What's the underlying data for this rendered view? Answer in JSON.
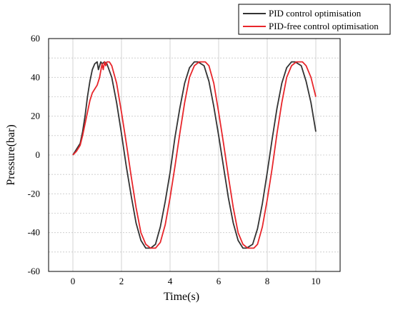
{
  "chart_data": {
    "type": "line",
    "title": "",
    "xlabel": "Time(s)",
    "ylabel": "Pressure(bar)",
    "xlim": [
      -1,
      11
    ],
    "ylim": [
      -60,
      60
    ],
    "xticks": [
      0,
      2,
      4,
      6,
      8,
      10
    ],
    "yticks": [
      -60,
      -40,
      -20,
      0,
      20,
      40,
      60
    ],
    "xtick_labels": [
      "0",
      "2",
      "4",
      "6",
      "8",
      "10"
    ],
    "ytick_labels": [
      "-60",
      "-40",
      "-20",
      "0",
      "20",
      "40",
      "60"
    ],
    "grid": true,
    "legend_position": "top-right",
    "series": [
      {
        "name": "PID control optimisation",
        "color": "#333333",
        "x": [
          0,
          0.15,
          0.3,
          0.4,
          0.5,
          0.6,
          0.7,
          0.8,
          0.9,
          1.0,
          1.05,
          1.1,
          1.15,
          1.2,
          1.3,
          1.4,
          1.6,
          1.8,
          2.0,
          2.2,
          2.4,
          2.6,
          2.8,
          3.0,
          3.2,
          3.4,
          3.6,
          3.8,
          4.0,
          4.2,
          4.4,
          4.6,
          4.8,
          5.0,
          5.15,
          5.4,
          5.6,
          5.8,
          6.0,
          6.2,
          6.4,
          6.6,
          6.8,
          7.0,
          7.15,
          7.4,
          7.6,
          7.8,
          8.0,
          8.2,
          8.4,
          8.6,
          8.8,
          9.0,
          9.15,
          9.4,
          9.6,
          9.8,
          10.0
        ],
        "y": [
          0,
          3,
          6,
          12,
          20,
          30,
          38,
          44,
          47,
          48,
          44,
          46,
          48,
          47,
          48,
          47,
          40,
          27,
          11,
          -6,
          -21,
          -35,
          -44,
          -48,
          -48,
          -46,
          -37,
          -24,
          -9,
          9,
          24,
          37,
          45,
          48,
          48,
          46,
          38,
          25,
          10,
          -6,
          -22,
          -35,
          -44,
          -48,
          -48,
          -46,
          -38,
          -25,
          -9,
          8,
          24,
          37,
          45,
          48,
          48,
          46,
          38,
          27,
          12
        ]
      },
      {
        "name": "PID-free control optimisation",
        "color": "#e8262b",
        "x": [
          0,
          0.15,
          0.3,
          0.4,
          0.5,
          0.6,
          0.7,
          0.8,
          0.9,
          1.0,
          1.1,
          1.2,
          1.25,
          1.3,
          1.35,
          1.4,
          1.5,
          1.6,
          1.8,
          2.0,
          2.2,
          2.4,
          2.6,
          2.8,
          3.0,
          3.2,
          3.4,
          3.6,
          3.8,
          4.0,
          4.2,
          4.4,
          4.6,
          4.8,
          5.0,
          5.2,
          5.45,
          5.6,
          5.8,
          6.0,
          6.2,
          6.4,
          6.6,
          6.8,
          7.0,
          7.2,
          7.45,
          7.6,
          7.8,
          8.0,
          8.2,
          8.4,
          8.6,
          8.8,
          9.0,
          9.2,
          9.45,
          9.6,
          9.8,
          10.0
        ],
        "y": [
          0,
          2,
          5,
          10,
          16,
          22,
          28,
          32,
          34,
          36,
          40,
          47,
          44,
          48,
          46,
          48,
          48,
          46,
          37,
          22,
          6,
          -11,
          -27,
          -40,
          -46,
          -48,
          -48,
          -45,
          -36,
          -22,
          -6,
          11,
          27,
          40,
          46,
          48,
          48,
          46,
          37,
          22,
          6,
          -11,
          -27,
          -40,
          -46,
          -48,
          -48,
          -46,
          -37,
          -23,
          -7,
          11,
          27,
          40,
          46,
          48,
          48,
          46,
          40,
          30
        ]
      }
    ]
  }
}
